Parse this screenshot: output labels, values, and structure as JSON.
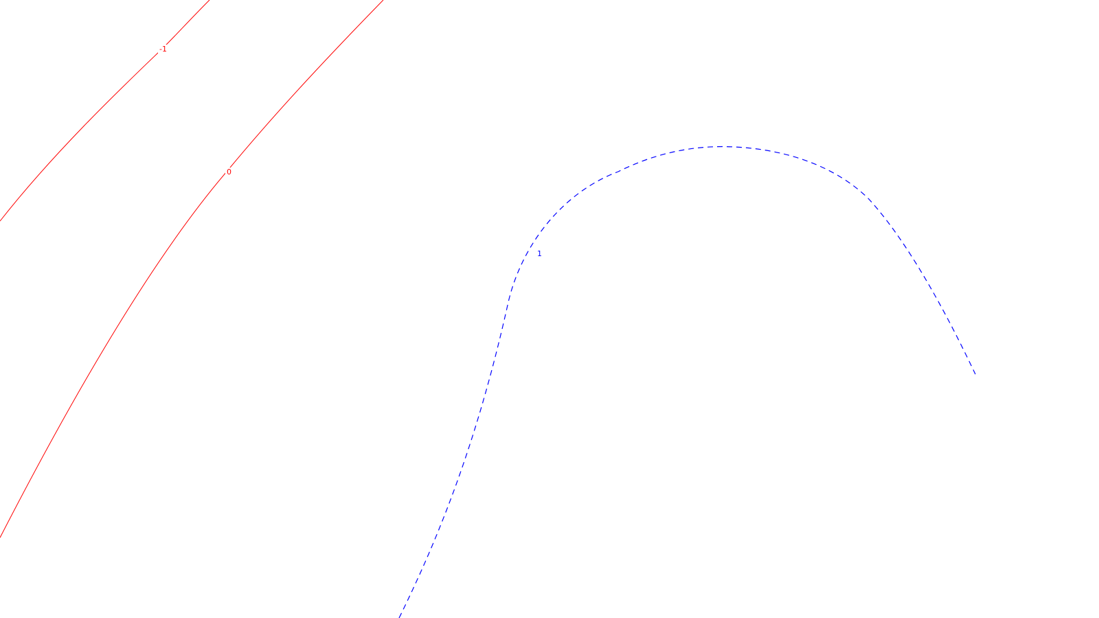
{
  "contours": [
    {
      "level": "-1",
      "color": "#ff0000",
      "style": "solid"
    },
    {
      "level": "0",
      "color": "#ff0000",
      "style": "solid"
    },
    {
      "level": "1",
      "color": "#0000ff",
      "style": "dashed"
    }
  ]
}
